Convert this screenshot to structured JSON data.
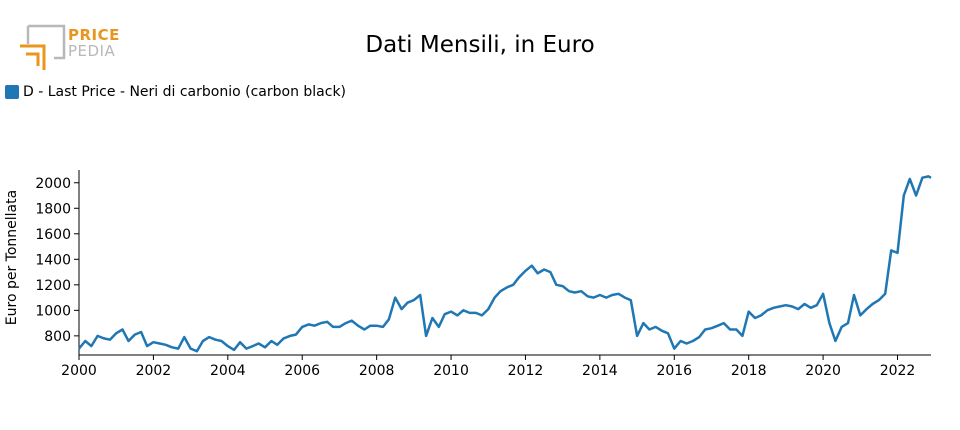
{
  "logo": {
    "price": "PRICE",
    "pedia": "PEDIA"
  },
  "colors": {
    "line": "#1f77b4",
    "logo_orange": "#e8961e",
    "logo_grey": "#b8b8b8"
  },
  "chart_data": {
    "type": "line",
    "title": "Dati Mensili, in Euro",
    "ylabel": "Euro per Tonnellata",
    "xlabel": "",
    "legend": "top-left",
    "grid": false,
    "xlim": [
      2000,
      2022.9
    ],
    "ylim": [
      650,
      2100
    ],
    "x_ticks": [
      "2000",
      "2002",
      "2004",
      "2006",
      "2008",
      "2010",
      "2012",
      "2014",
      "2016",
      "2018",
      "2020",
      "2022"
    ],
    "y_ticks": [
      "800",
      "1000",
      "1200",
      "1400",
      "1600",
      "1800",
      "2000"
    ],
    "series": [
      {
        "name": "D - Last Price - Neri di carbonio (carbon black)",
        "x": [
          2000.0,
          2000.17,
          2000.33,
          2000.5,
          2000.67,
          2000.83,
          2001.0,
          2001.17,
          2001.33,
          2001.5,
          2001.67,
          2001.83,
          2002.0,
          2002.17,
          2002.33,
          2002.5,
          2002.67,
          2002.83,
          2003.0,
          2003.17,
          2003.33,
          2003.5,
          2003.67,
          2003.83,
          2004.0,
          2004.17,
          2004.33,
          2004.5,
          2004.67,
          2004.83,
          2005.0,
          2005.17,
          2005.33,
          2005.5,
          2005.67,
          2005.83,
          2006.0,
          2006.17,
          2006.33,
          2006.5,
          2006.67,
          2006.83,
          2007.0,
          2007.17,
          2007.33,
          2007.5,
          2007.67,
          2007.83,
          2008.0,
          2008.17,
          2008.33,
          2008.5,
          2008.67,
          2008.83,
          2009.0,
          2009.17,
          2009.33,
          2009.5,
          2009.67,
          2009.83,
          2010.0,
          2010.17,
          2010.33,
          2010.5,
          2010.67,
          2010.83,
          2011.0,
          2011.17,
          2011.33,
          2011.5,
          2011.67,
          2011.83,
          2012.0,
          2012.17,
          2012.33,
          2012.5,
          2012.67,
          2012.83,
          2013.0,
          2013.17,
          2013.33,
          2013.5,
          2013.67,
          2013.83,
          2014.0,
          2014.17,
          2014.33,
          2014.5,
          2014.67,
          2014.83,
          2015.0,
          2015.17,
          2015.33,
          2015.5,
          2015.67,
          2015.83,
          2016.0,
          2016.17,
          2016.33,
          2016.5,
          2016.67,
          2016.83,
          2017.0,
          2017.17,
          2017.33,
          2017.5,
          2017.67,
          2017.83,
          2018.0,
          2018.17,
          2018.33,
          2018.5,
          2018.67,
          2018.83,
          2019.0,
          2019.17,
          2019.33,
          2019.5,
          2019.67,
          2019.83,
          2020.0,
          2020.17,
          2020.33,
          2020.5,
          2020.67,
          2020.83,
          2021.0,
          2021.17,
          2021.33,
          2021.5,
          2021.67,
          2021.83,
          2022.0,
          2022.17,
          2022.33,
          2022.5,
          2022.67,
          2022.83,
          2022.9
        ],
        "y": [
          700,
          760,
          720,
          800,
          780,
          770,
          820,
          850,
          760,
          810,
          830,
          720,
          750,
          740,
          730,
          710,
          700,
          790,
          700,
          680,
          760,
          790,
          770,
          760,
          720,
          690,
          750,
          700,
          720,
          740,
          710,
          760,
          730,
          780,
          800,
          810,
          870,
          890,
          880,
          900,
          910,
          870,
          870,
          900,
          920,
          880,
          850,
          880,
          880,
          870,
          930,
          1100,
          1010,
          1060,
          1080,
          1120,
          800,
          940,
          870,
          970,
          990,
          960,
          1000,
          980,
          980,
          960,
          1010,
          1100,
          1150,
          1180,
          1200,
          1260,
          1310,
          1350,
          1290,
          1320,
          1300,
          1200,
          1190,
          1150,
          1140,
          1150,
          1110,
          1100,
          1120,
          1100,
          1120,
          1130,
          1100,
          1080,
          800,
          900,
          850,
          870,
          840,
          820,
          700,
          760,
          740,
          760,
          790,
          850,
          860,
          880,
          900,
          850,
          850,
          800,
          990,
          940,
          960,
          1000,
          1020,
          1030,
          1040,
          1030,
          1010,
          1050,
          1020,
          1040,
          1130,
          900,
          760,
          870,
          900,
          1120,
          960,
          1010,
          1050,
          1080,
          1130,
          1470,
          1450,
          1900,
          2030,
          1900,
          2040,
          2050,
          2040
        ]
      }
    ]
  }
}
